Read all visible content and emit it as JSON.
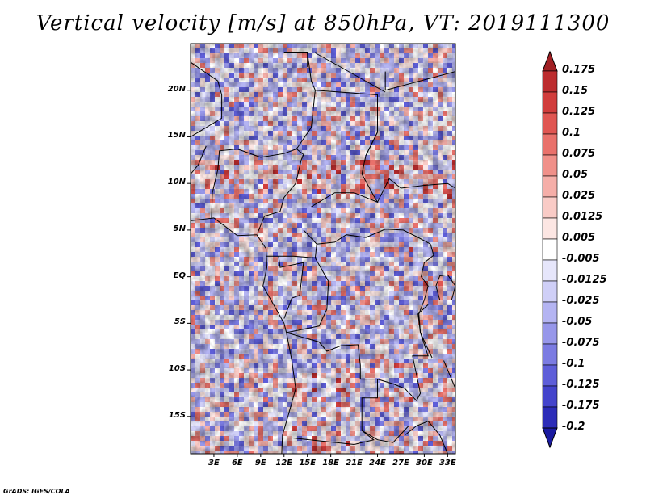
{
  "title": "Vertical velocity [m/s] at 850hPa, VT: 2019111300",
  "footer": "GrADS: IGES/COLA",
  "map": {
    "lon_range": [
      0,
      34
    ],
    "lat_range": [
      -19,
      25
    ],
    "lat_ticks": [
      {
        "value": 20,
        "label": "20N"
      },
      {
        "value": 15,
        "label": "15N"
      },
      {
        "value": 10,
        "label": "10N"
      },
      {
        "value": 5,
        "label": "5N"
      },
      {
        "value": 0,
        "label": "EQ"
      },
      {
        "value": -5,
        "label": "5S"
      },
      {
        "value": -10,
        "label": "10S"
      },
      {
        "value": -15,
        "label": "15S"
      }
    ],
    "lon_ticks": [
      {
        "value": 3,
        "label": "3E"
      },
      {
        "value": 6,
        "label": "6E"
      },
      {
        "value": 9,
        "label": "9E"
      },
      {
        "value": 12,
        "label": "12E"
      },
      {
        "value": 15,
        "label": "15E"
      },
      {
        "value": 18,
        "label": "18E"
      },
      {
        "value": 21,
        "label": "21E"
      },
      {
        "value": 24,
        "label": "24E"
      },
      {
        "value": 27,
        "label": "27E"
      },
      {
        "value": 30,
        "label": "30E"
      },
      {
        "value": 33,
        "label": "33E"
      }
    ],
    "field_variable": "vertical velocity",
    "field_units": "m/s",
    "pressure_level": "850hPa",
    "valid_time": "2019111300"
  },
  "colorbar": {
    "orientation": "vertical",
    "placement": "right",
    "levels": [
      {
        "label": "0.175",
        "color": "#a01f23"
      },
      {
        "label": "0.15",
        "color": "#bc2c2e"
      },
      {
        "label": "0.125",
        "color": "#d13d3c"
      },
      {
        "label": "0.1",
        "color": "#e05652"
      },
      {
        "label": "0.075",
        "color": "#e9716b"
      },
      {
        "label": "0.05",
        "color": "#f09089"
      },
      {
        "label": "0.025",
        "color": "#f5aea8"
      },
      {
        "label": "0.0125",
        "color": "#f9cbc6"
      },
      {
        "label": "0.005",
        "color": "#fce6e3"
      },
      {
        "label": "-0.005",
        "color": "#ffffff"
      },
      {
        "label": "-0.0125",
        "color": "#e6e6fb"
      },
      {
        "label": "-0.025",
        "color": "#cfcff7"
      },
      {
        "label": "-0.05",
        "color": "#b4b4f2"
      },
      {
        "label": "-0.075",
        "color": "#9797ea"
      },
      {
        "label": "-0.1",
        "color": "#7b7be2"
      },
      {
        "label": "-0.125",
        "color": "#5e5ed9"
      },
      {
        "label": "-0.175",
        "color": "#4444cc"
      },
      {
        "label": "-0.2",
        "color": "#2c2cb8"
      }
    ],
    "top_extend_color": "#a01f23",
    "bottom_extend_color": "#1a1aa0"
  }
}
